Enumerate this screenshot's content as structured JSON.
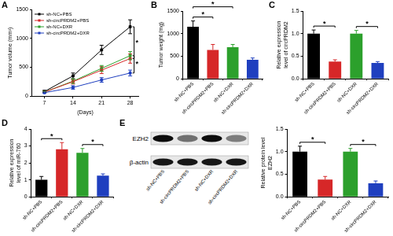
{
  "chart_data": [
    {
      "panel": "A",
      "type": "line",
      "x_label": "(Days)",
      "y_label": "Tumor volume (mm³)",
      "x": [
        7,
        14,
        21,
        28
      ],
      "xlim": [
        4,
        30
      ],
      "xticks": [
        7,
        14,
        21,
        28
      ],
      "ylim": [
        0,
        1500
      ],
      "yticks": [
        0,
        500,
        1000,
        1500
      ],
      "grid": false,
      "legend": "upper left",
      "series": [
        {
          "name": "sh-NC+PBS",
          "color": "#000000",
          "marker": "square",
          "values": [
            80,
            350,
            800,
            1200
          ],
          "errors": [
            20,
            50,
            80,
            120
          ]
        },
        {
          "name": "sh-circPRDM2+PBS",
          "color": "#d62728",
          "marker": "square",
          "values": [
            70,
            250,
            450,
            650
          ],
          "errors": [
            15,
            40,
            60,
            80
          ]
        },
        {
          "name": "sh-NC+DXR",
          "color": "#2ca02c",
          "marker": "square",
          "values": [
            70,
            260,
            480,
            700
          ],
          "errors": [
            15,
            40,
            50,
            70
          ]
        },
        {
          "name": "sh-circPRDM2+DXR",
          "color": "#1f3fbf",
          "marker": "square",
          "values": [
            60,
            150,
            280,
            400
          ],
          "errors": [
            10,
            30,
            40,
            50
          ]
        }
      ],
      "annotations": [
        {
          "text": "*",
          "between": [
            0,
            1
          ]
        },
        {
          "text": "*",
          "between": [
            2,
            3
          ]
        }
      ]
    },
    {
      "panel": "B",
      "type": "bar",
      "y_label": "Tumor weight (mg)",
      "categories": [
        "sh-NC+PBS",
        "sh-circPRDM2+PBS",
        "sh-NC+DXR",
        "sh-circPRDM2+DXR"
      ],
      "values": [
        1150,
        640,
        700,
        420
      ],
      "errors": [
        130,
        120,
        60,
        40
      ],
      "colors": [
        "#000000",
        "#d62728",
        "#2ca02c",
        "#1f3fbf"
      ],
      "ylim": [
        0,
        1500
      ],
      "yticks": [
        0,
        500,
        1000,
        1500
      ],
      "grid": false,
      "annotations": [
        {
          "text": "*",
          "between": [
            0,
            1
          ]
        },
        {
          "text": "*",
          "between": [
            0,
            2
          ]
        },
        {
          "text": "*",
          "between": [
            2,
            3
          ]
        }
      ]
    },
    {
      "panel": "C",
      "type": "bar",
      "y_label": [
        "Relative expression",
        "level of circPRDM2"
      ],
      "categories": [
        "sh-NC+PBS",
        "sh-circPRDM2+PBS",
        "sh-NC+DXR",
        "sh-circPRDM2+DXR"
      ],
      "values": [
        1.0,
        0.38,
        1.0,
        0.35
      ],
      "errors": [
        0.08,
        0.04,
        0.07,
        0.03
      ],
      "colors": [
        "#000000",
        "#d62728",
        "#2ca02c",
        "#1f3fbf"
      ],
      "ylim": [
        0,
        1.5
      ],
      "yticks": [
        {
          "value": 0,
          "label": "0.0"
        },
        0.5,
        {
          "value": 1,
          "label": "1.0"
        },
        1.5
      ],
      "grid": false,
      "annotations": [
        {
          "text": "*",
          "between": [
            0,
            1
          ]
        },
        {
          "text": "*",
          "between": [
            2,
            3
          ]
        }
      ]
    },
    {
      "panel": "D",
      "type": "bar",
      "y_label": [
        "Relative expression",
        "level of miR-760"
      ],
      "categories": [
        "sh-NC+PBS",
        "sh-circPRDM2+PBS",
        "sh-NC+DXR",
        "sh-circPRDM2+DXR"
      ],
      "values": [
        1.0,
        2.8,
        2.6,
        1.25
      ],
      "errors": [
        0.2,
        0.4,
        0.25,
        0.1
      ],
      "colors": [
        "#000000",
        "#d62728",
        "#2ca02c",
        "#1f3fbf"
      ],
      "ylim": [
        0,
        4
      ],
      "yticks": [
        0,
        1,
        2,
        3,
        4
      ],
      "grid": false,
      "annotations": [
        {
          "text": "*",
          "between": [
            0,
            1
          ]
        },
        {
          "text": "*",
          "between": [
            2,
            3
          ]
        }
      ]
    },
    {
      "type": "bar",
      "y_label": [
        "Relative protein level",
        "EZH2"
      ],
      "categories": [
        "sh-NC+PBS",
        "sh-circPRDM2+PBS",
        "sh-NC+DXR",
        "sh-circPRDM2+DXR"
      ],
      "values": [
        1.0,
        0.38,
        1.0,
        0.3
      ],
      "errors": [
        0.12,
        0.07,
        0.07,
        0.05
      ],
      "colors": [
        "#000000",
        "#d62728",
        "#2ca02c",
        "#1f3fbf"
      ],
      "ylim": [
        0,
        1.5
      ],
      "yticks": [
        {
          "value": 0,
          "label": "0.0"
        },
        0.5,
        {
          "value": 1,
          "label": "1.0"
        },
        1.5
      ],
      "grid": false,
      "annotations": [
        {
          "text": "*",
          "between": [
            0,
            1
          ]
        },
        {
          "text": "*",
          "between": [
            2,
            3
          ]
        }
      ]
    }
  ],
  "blot": {
    "panel": "E",
    "rows": [
      "EZH2",
      "β-actin"
    ],
    "lanes": [
      "sh-NC+PBS",
      "sh-circPRDM2+PBS",
      "sh-NC+DXR",
      "sh-circPRDM2+DXR"
    ]
  }
}
